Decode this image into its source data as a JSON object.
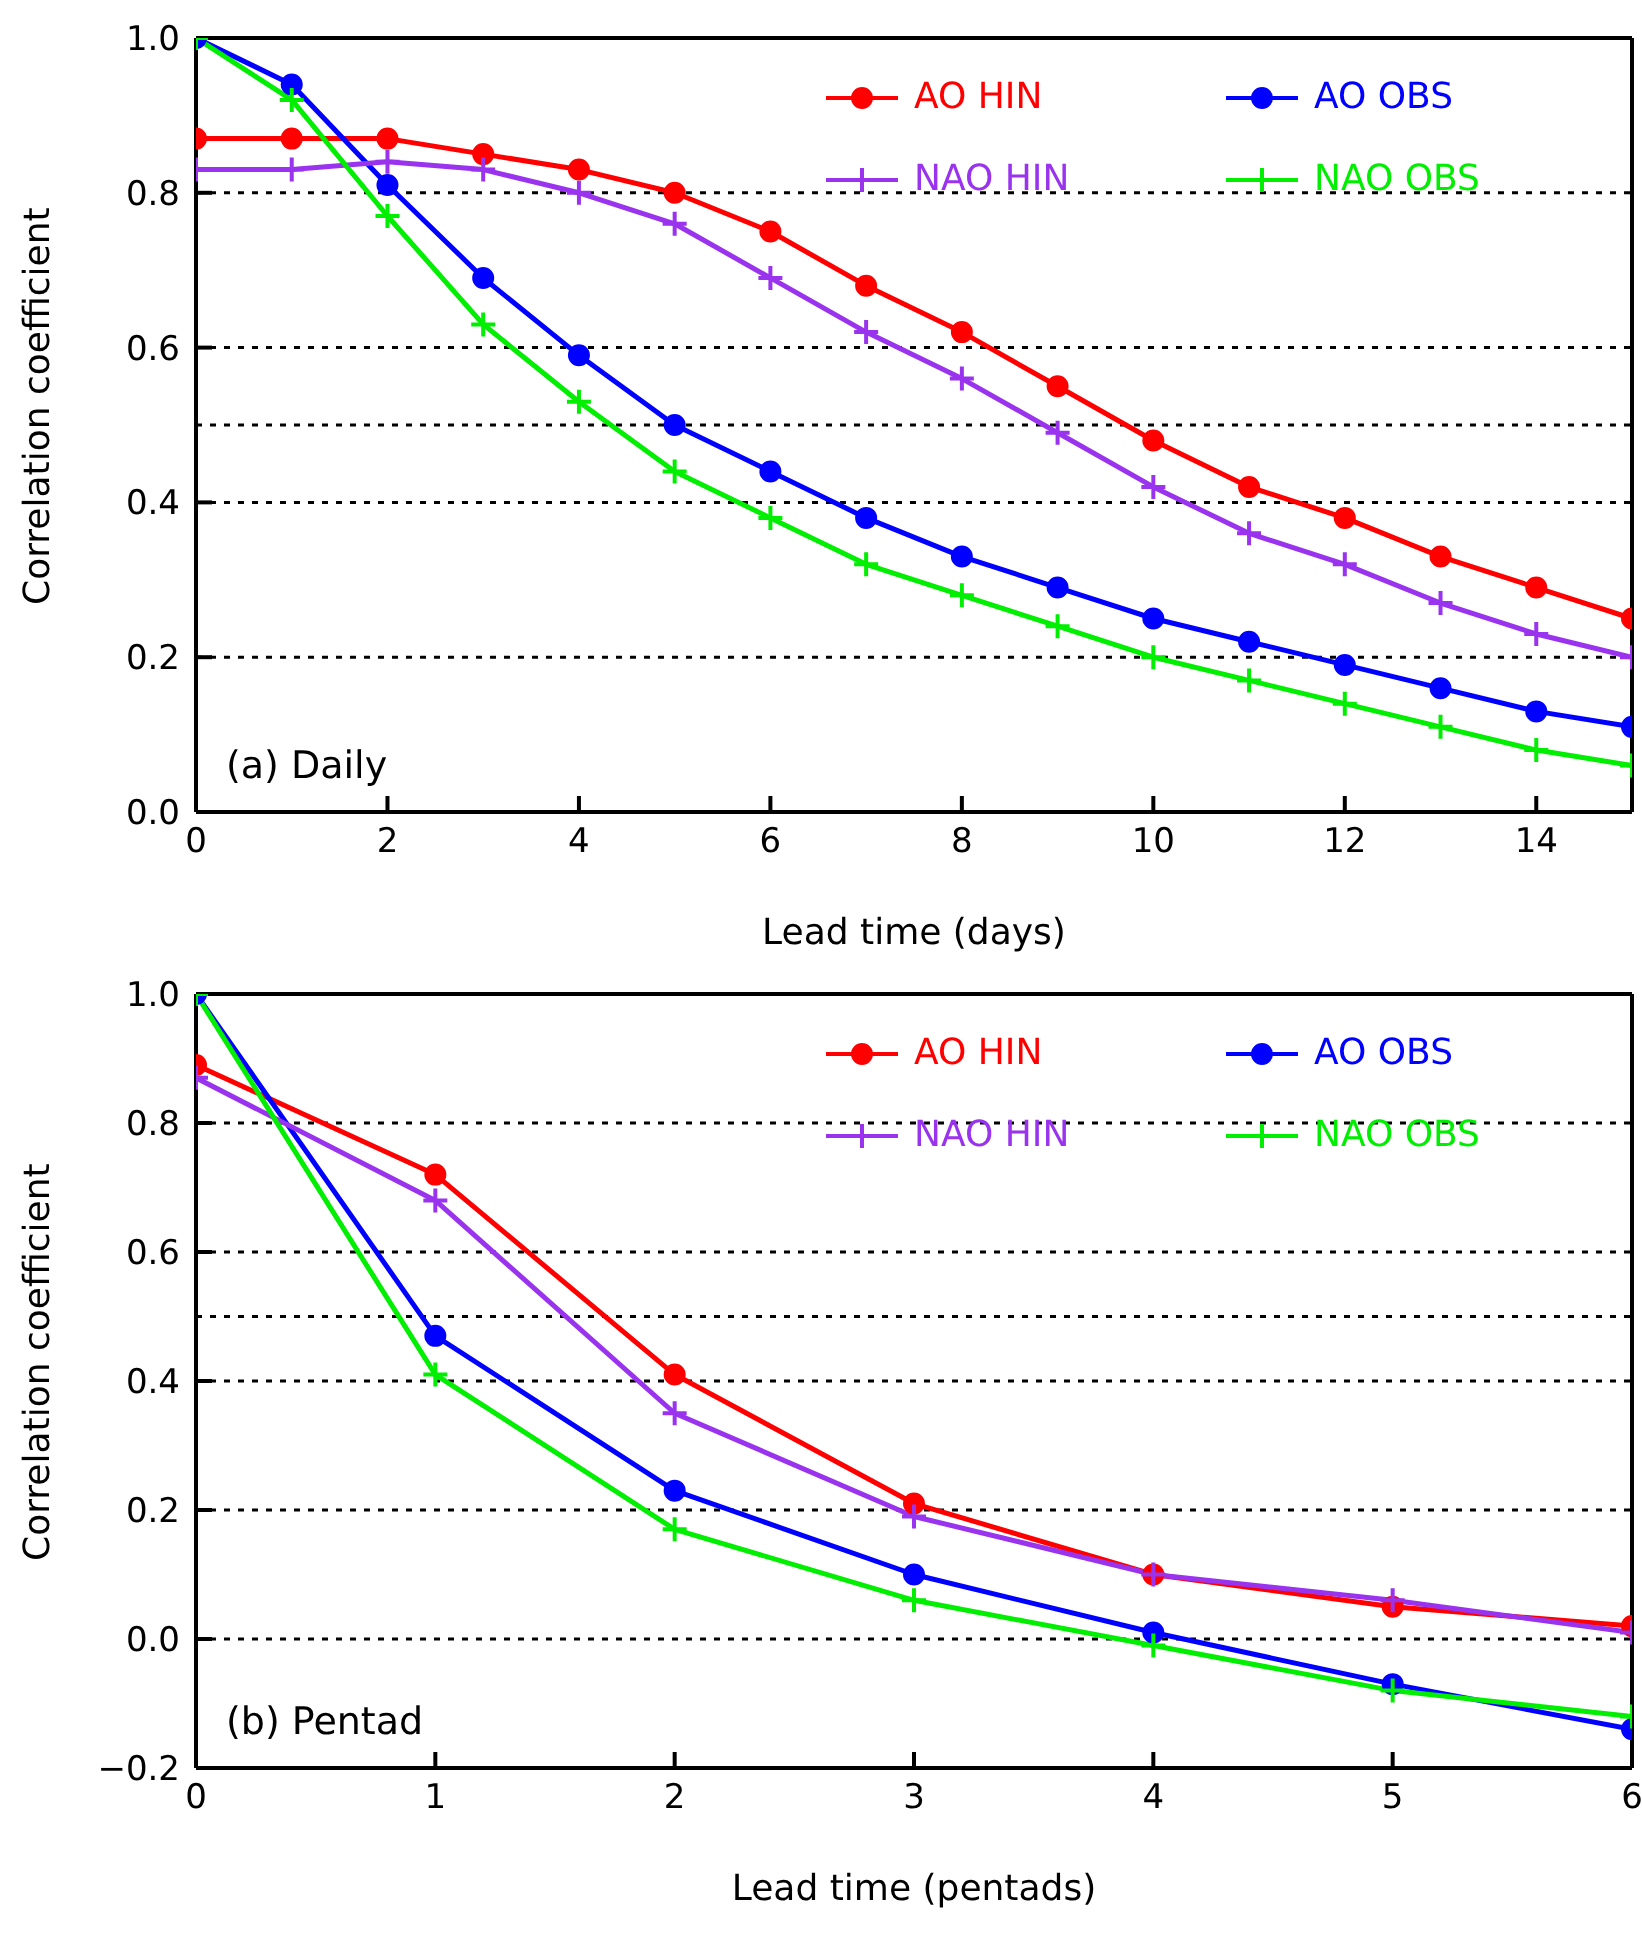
{
  "chart_data": [
    {
      "type": "line",
      "xlabel": "Lead time (days)",
      "ylabel": "Correlation coefficient",
      "annotations": [
        "(a) Daily"
      ],
      "x": [
        0,
        1,
        2,
        3,
        4,
        5,
        6,
        7,
        8,
        9,
        10,
        11,
        12,
        13,
        14,
        15
      ],
      "xlim": [
        0,
        15
      ],
      "xticks": [
        0,
        2,
        4,
        6,
        8,
        10,
        12,
        14
      ],
      "ylim": [
        0,
        1
      ],
      "yticks": [
        {
          "value": 0,
          "label": "0.0"
        },
        {
          "value": 0.2,
          "label": "0.2"
        },
        {
          "value": 0.4,
          "label": "0.4"
        },
        {
          "value": 0.6,
          "label": "0.6"
        },
        {
          "value": 0.8,
          "label": "0.8"
        },
        {
          "value": 1,
          "label": "1.0"
        }
      ],
      "legend": "top right",
      "line_style": "solid",
      "ref_lines": [
        {
          "axis": "y",
          "value": 0.2,
          "color": "#000000",
          "line_style": "dotted"
        },
        {
          "axis": "y",
          "value": 0.4,
          "color": "#000000",
          "line_style": "dotted"
        },
        {
          "axis": "y",
          "value": 0.5,
          "color": "#000000",
          "line_style": "dotted"
        },
        {
          "axis": "y",
          "value": 0.6,
          "color": "#000000",
          "line_style": "dotted"
        },
        {
          "axis": "y",
          "value": 0.8,
          "color": "#000000",
          "line_style": "dotted"
        }
      ],
      "series": [
        {
          "name": "AO HIN",
          "color": "#ff0000",
          "marker": "circle",
          "values": [
            0.87,
            0.87,
            0.87,
            0.85,
            0.83,
            0.8,
            0.75,
            0.68,
            0.62,
            0.55,
            0.48,
            0.42,
            0.38,
            0.33,
            0.29,
            0.25
          ]
        },
        {
          "name": "AO OBS",
          "color": "#0000ff",
          "marker": "circle",
          "values": [
            1.0,
            0.94,
            0.81,
            0.69,
            0.59,
            0.5,
            0.44,
            0.38,
            0.33,
            0.29,
            0.25,
            0.22,
            0.19,
            0.16,
            0.13,
            0.11
          ]
        },
        {
          "name": "NAO HIN",
          "color": "#9933ee",
          "marker": "cross",
          "values": [
            0.83,
            0.83,
            0.84,
            0.83,
            0.8,
            0.76,
            0.69,
            0.62,
            0.56,
            0.49,
            0.42,
            0.36,
            0.32,
            0.27,
            0.23,
            0.2
          ]
        },
        {
          "name": "NAO OBS",
          "color": "#00ee00",
          "marker": "cross",
          "values": [
            1.0,
            0.92,
            0.77,
            0.63,
            0.53,
            0.44,
            0.38,
            0.32,
            0.28,
            0.24,
            0.2,
            0.17,
            0.14,
            0.11,
            0.08,
            0.06
          ]
        }
      ]
    },
    {
      "type": "line",
      "xlabel": "Lead time (pentads)",
      "ylabel": "Correlation coefficient",
      "annotations": [
        "(b) Pentad"
      ],
      "x": [
        0,
        1,
        2,
        3,
        4,
        5,
        6
      ],
      "xlim": [
        0,
        6
      ],
      "xticks": [
        0,
        1,
        2,
        3,
        4,
        5,
        6
      ],
      "ylim": [
        -0.2,
        1
      ],
      "yticks": [
        {
          "value": -0.2,
          "label": "−0.2"
        },
        {
          "value": 0,
          "label": "0.0"
        },
        {
          "value": 0.2,
          "label": "0.2"
        },
        {
          "value": 0.4,
          "label": "0.4"
        },
        {
          "value": 0.6,
          "label": "0.6"
        },
        {
          "value": 0.8,
          "label": "0.8"
        },
        {
          "value": 1,
          "label": "1.0"
        }
      ],
      "legend": "top right",
      "line_style": "solid",
      "ref_lines": [
        {
          "axis": "y",
          "value": 0,
          "color": "#000000",
          "line_style": "dotted"
        },
        {
          "axis": "y",
          "value": 0.2,
          "color": "#000000",
          "line_style": "dotted"
        },
        {
          "axis": "y",
          "value": 0.4,
          "color": "#000000",
          "line_style": "dotted"
        },
        {
          "axis": "y",
          "value": 0.5,
          "color": "#000000",
          "line_style": "dotted"
        },
        {
          "axis": "y",
          "value": 0.6,
          "color": "#000000",
          "line_style": "dotted"
        },
        {
          "axis": "y",
          "value": 0.8,
          "color": "#000000",
          "line_style": "dotted"
        }
      ],
      "series": [
        {
          "name": "AO HIN",
          "color": "#ff0000",
          "marker": "circle",
          "values": [
            0.89,
            0.72,
            0.41,
            0.21,
            0.1,
            0.05,
            0.02
          ]
        },
        {
          "name": "AO OBS",
          "color": "#0000ff",
          "marker": "circle",
          "values": [
            1.0,
            0.47,
            0.23,
            0.1,
            0.01,
            -0.07,
            -0.14
          ]
        },
        {
          "name": "NAO HIN",
          "color": "#9933ee",
          "marker": "cross",
          "values": [
            0.87,
            0.68,
            0.35,
            0.19,
            0.1,
            0.06,
            0.01
          ]
        },
        {
          "name": "NAO OBS",
          "color": "#00ee00",
          "marker": "cross",
          "values": [
            1.0,
            0.41,
            0.17,
            0.06,
            -0.01,
            -0.08,
            -0.12
          ]
        }
      ]
    }
  ]
}
